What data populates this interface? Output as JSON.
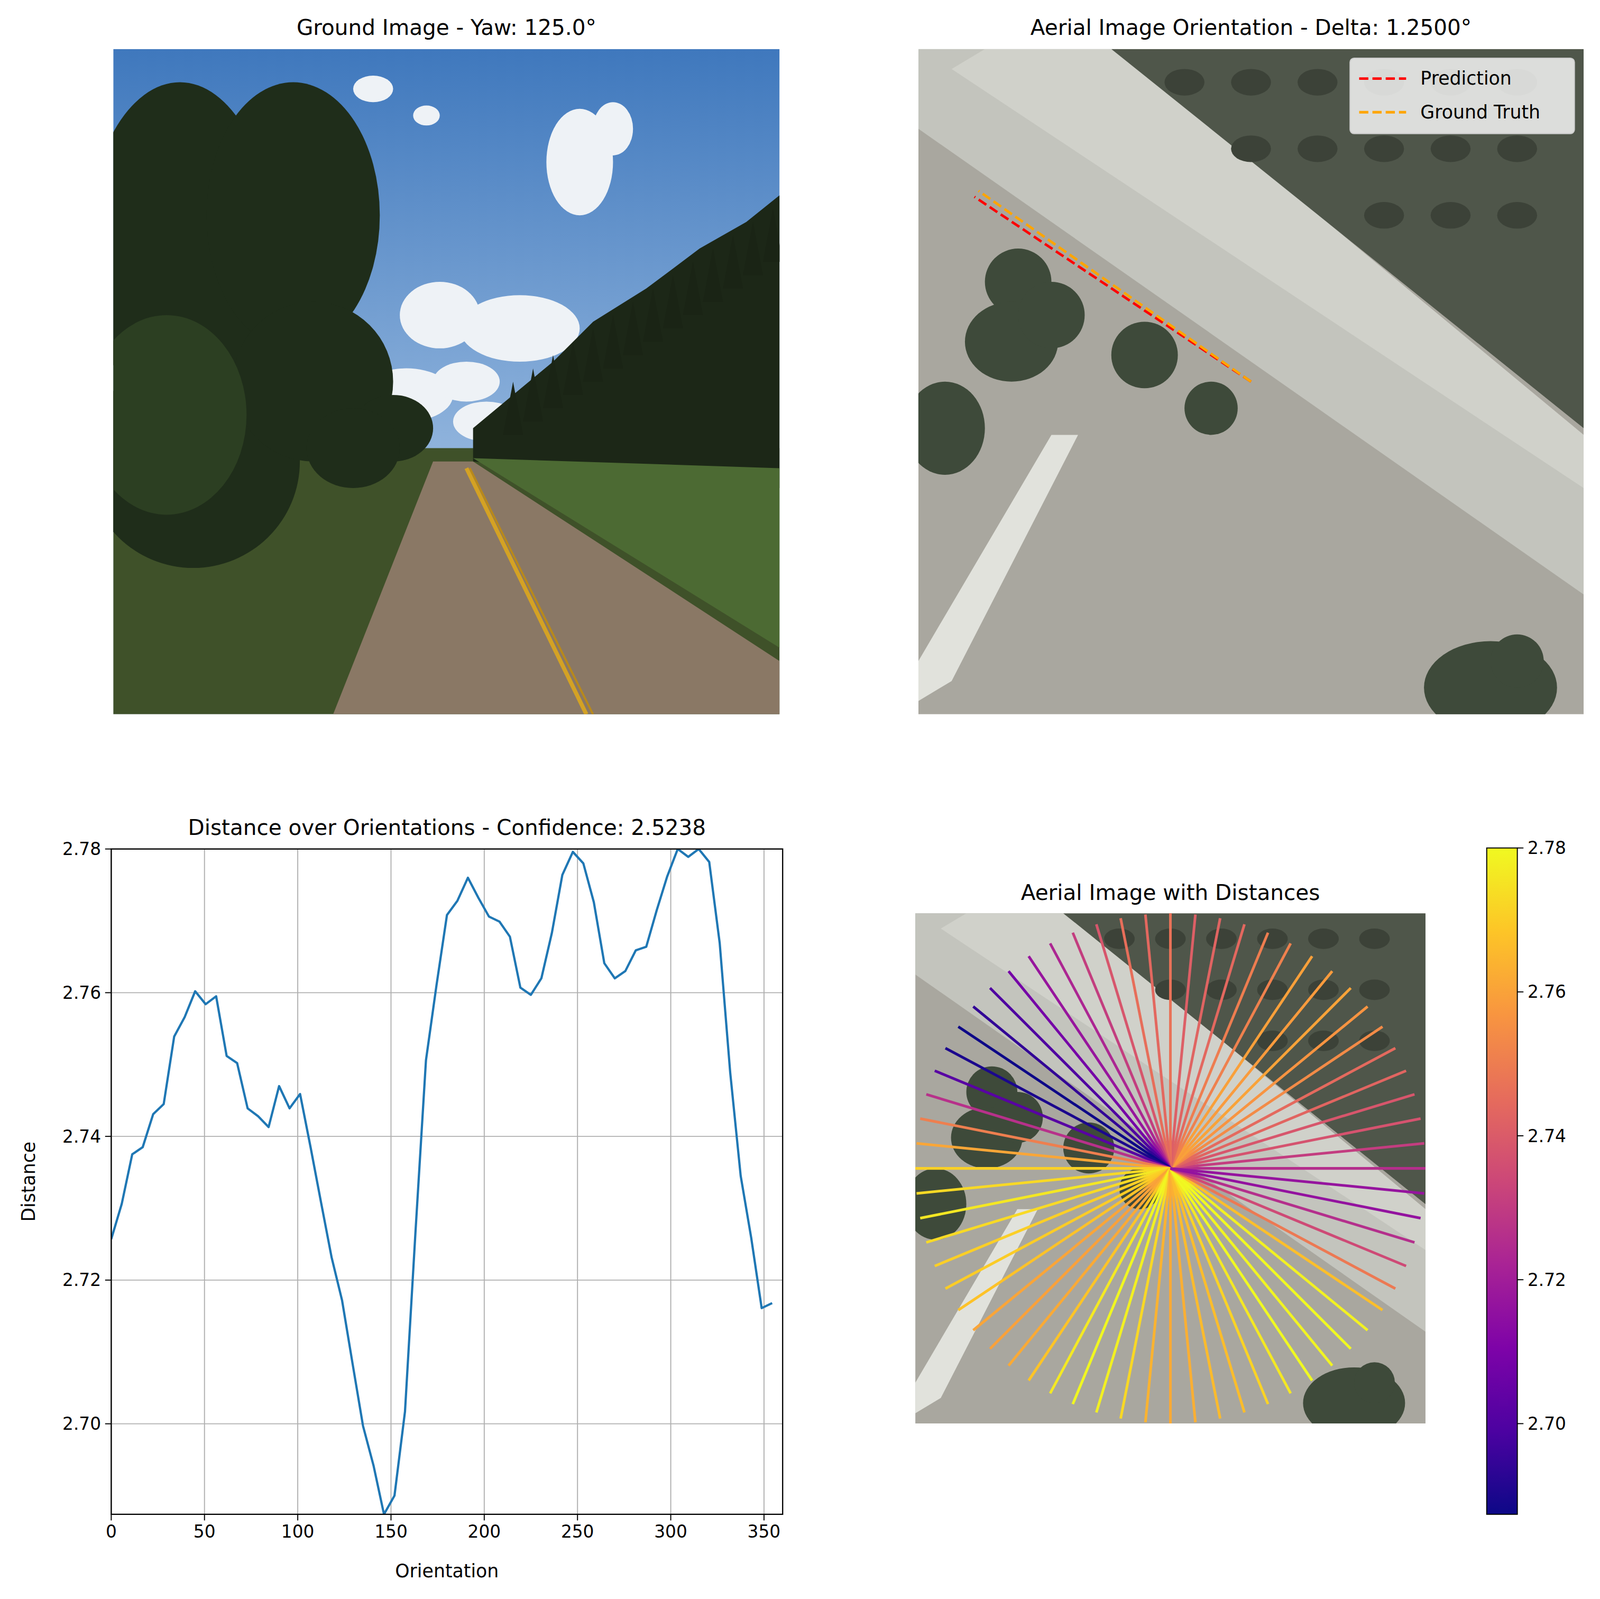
{
  "chart_data": [
    {
      "type": "image",
      "title": "Ground Image - Yaw: 125.0°"
    },
    {
      "type": "orientation",
      "title": "Aerial Image Orientation - Delta: 1.2500°",
      "legend": "upper right",
      "series": [
        {
          "name": "Prediction",
          "color": "#ff0000",
          "line_style": "dashed",
          "values": [
            146.25
          ]
        },
        {
          "name": "Ground Truth",
          "color": "#ffa500",
          "line_style": "dashed",
          "values": [
            145.0
          ]
        }
      ]
    },
    {
      "type": "line",
      "title": "Distance over Orientations - Confidence: 2.5238",
      "x_label": "Orientation",
      "y_label": "Distance",
      "color": "#1f77b4",
      "grid": true,
      "x": [
        0,
        5.625,
        11.25,
        16.875,
        22.5,
        28.125,
        33.75,
        39.375,
        45,
        50.625,
        56.25,
        61.875,
        67.5,
        73.125,
        78.75,
        84.375,
        90,
        95.625,
        101.25,
        106.875,
        112.5,
        118.125,
        123.75,
        129.375,
        135,
        140.625,
        146.25,
        151.875,
        157.5,
        163.125,
        168.75,
        174.375,
        180,
        185.625,
        191.25,
        196.875,
        202.5,
        208.125,
        213.75,
        219.375,
        225,
        230.625,
        236.25,
        241.875,
        247.5,
        253.125,
        258.75,
        264.375,
        270,
        275.625,
        281.25,
        286.875,
        292.5,
        298.125,
        303.75,
        309.375,
        315,
        320.625,
        326.25,
        331.875,
        337.5,
        343.125,
        348.75,
        354.375
      ],
      "values": [
        2.7257,
        2.7306,
        2.7375,
        2.7385,
        2.7431,
        2.7445,
        2.7539,
        2.7566,
        2.7602,
        2.7584,
        2.7595,
        2.7512,
        2.7502,
        2.7439,
        2.7428,
        2.7413,
        2.747,
        2.7439,
        2.7459,
        2.7385,
        2.7308,
        2.7232,
        2.7172,
        2.7084,
        2.6997,
        2.6942,
        2.6874,
        2.69,
        2.7017,
        2.7267,
        2.7506,
        2.761,
        2.7708,
        2.7728,
        2.776,
        2.7732,
        2.7706,
        2.7699,
        2.7678,
        2.7607,
        2.7597,
        2.762,
        2.7683,
        2.7764,
        2.7796,
        2.778,
        2.7726,
        2.7641,
        2.762,
        2.763,
        2.7659,
        2.7664,
        2.7715,
        2.7762,
        2.78,
        2.7789,
        2.78,
        2.7782,
        2.7669,
        2.7489,
        2.7345,
        2.7259,
        2.7161,
        2.7168
      ],
      "xlim": [
        0,
        360
      ],
      "xticks": [
        0,
        50,
        100,
        150,
        200,
        250,
        300,
        350
      ],
      "ylim": [
        2.6874,
        2.78
      ],
      "yticks": [
        {
          "value": 2.7,
          "label": "2.70"
        },
        2.72,
        2.74,
        2.76,
        2.78
      ]
    },
    {
      "type": "radial",
      "title": "Aerial Image with Distances",
      "x": [
        0,
        5.625,
        11.25,
        16.875,
        22.5,
        28.125,
        33.75,
        39.375,
        45,
        50.625,
        56.25,
        61.875,
        67.5,
        73.125,
        78.75,
        84.375,
        90,
        95.625,
        101.25,
        106.875,
        112.5,
        118.125,
        123.75,
        129.375,
        135,
        140.625,
        146.25,
        151.875,
        157.5,
        163.125,
        168.75,
        174.375,
        180,
        185.625,
        191.25,
        196.875,
        202.5,
        208.125,
        213.75,
        219.375,
        225,
        230.625,
        236.25,
        241.875,
        247.5,
        253.125,
        258.75,
        264.375,
        270,
        275.625,
        281.25,
        286.875,
        292.5,
        298.125,
        303.75,
        309.375,
        315,
        320.625,
        326.25,
        331.875,
        337.5,
        343.125,
        348.75,
        354.375
      ],
      "values": [
        2.7257,
        2.7306,
        2.7375,
        2.7385,
        2.7431,
        2.7445,
        2.7539,
        2.7566,
        2.7602,
        2.7584,
        2.7595,
        2.7512,
        2.7502,
        2.7439,
        2.7428,
        2.7413,
        2.747,
        2.7439,
        2.7459,
        2.7385,
        2.7308,
        2.7232,
        2.7172,
        2.7084,
        2.6997,
        2.6942,
        2.6874,
        2.69,
        2.7017,
        2.7267,
        2.7506,
        2.761,
        2.7708,
        2.7728,
        2.776,
        2.7732,
        2.7706,
        2.7699,
        2.7678,
        2.7607,
        2.7597,
        2.762,
        2.7683,
        2.7764,
        2.7796,
        2.778,
        2.7726,
        2.7641,
        2.762,
        2.763,
        2.7659,
        2.7664,
        2.7715,
        2.7762,
        2.78,
        2.7789,
        2.78,
        2.7782,
        2.7669,
        2.7489,
        2.7345,
        2.7259,
        2.7161,
        2.7168
      ],
      "colorbar_lim": [
        2.6874,
        2.78
      ],
      "colorbar_ticks": [
        {
          "value": 2.7,
          "label": "2.70"
        },
        2.72,
        2.74,
        2.76,
        2.78
      ]
    }
  ]
}
